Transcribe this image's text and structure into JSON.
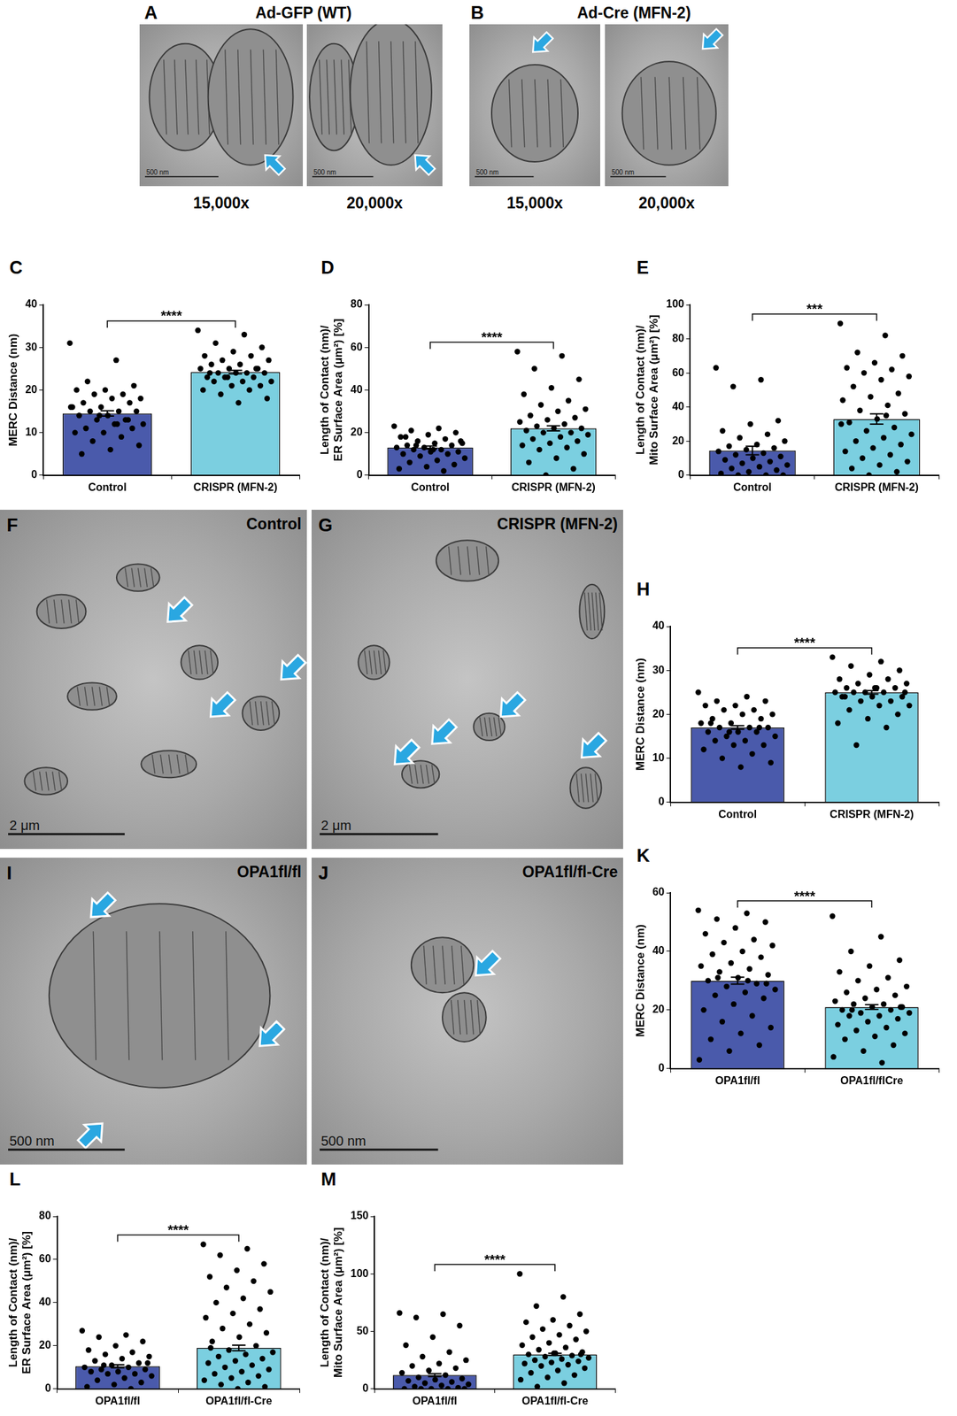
{
  "micrographs": [
    {
      "panel": "A",
      "title": "Ad-GFP (WT)",
      "images": [
        {
          "scale_bar": "500 nm",
          "magnification": "15,000x"
        },
        {
          "scale_bar": "500 nm",
          "magnification": "20,000x"
        }
      ]
    },
    {
      "panel": "B",
      "title": "Ad-Cre (MFN-2)",
      "images": [
        {
          "scale_bar": "500 nm",
          "magnification": "15,000x"
        },
        {
          "scale_bar": "500 nm",
          "magnification": "20,000x"
        }
      ]
    },
    {
      "panel": "F",
      "label": "Control",
      "images": [
        {
          "scale_bar": "2 μm"
        }
      ]
    },
    {
      "panel": "G",
      "label": "CRISPR (MFN-2)",
      "images": [
        {
          "scale_bar": "2 μm"
        }
      ]
    },
    {
      "panel": "I",
      "label": "OPA1fl/fl",
      "images": [
        {
          "scale_bar": "500 nm"
        }
      ]
    },
    {
      "panel": "J",
      "label": "OPA1fl/fl-Cre",
      "images": [
        {
          "scale_bar": "500 nm"
        }
      ]
    }
  ],
  "chart_data": [
    {
      "panel": "C",
      "type": "bar",
      "y_label": "MERC Distance (nm)",
      "categories": [
        "Control",
        "CRISPR (MFN-2)"
      ],
      "values": [
        14.5,
        24.2
      ],
      "error": [
        0.6,
        0.4
      ],
      "points": [
        [
          31,
          27,
          22,
          21,
          20,
          20,
          19,
          19,
          18,
          18,
          17,
          17,
          16,
          16,
          15,
          15,
          15,
          14,
          14,
          13,
          13,
          12,
          12,
          11,
          11,
          10,
          10,
          9,
          8,
          7,
          6,
          5,
          13,
          14,
          16,
          12
        ],
        [
          34,
          33,
          31,
          30,
          29,
          28,
          28,
          27,
          27,
          26,
          26,
          25,
          25,
          25,
          24,
          24,
          24,
          24,
          23,
          23,
          23,
          22,
          22,
          22,
          21,
          21,
          20,
          20,
          19,
          18,
          17,
          24,
          25,
          23
        ]
      ],
      "colors": [
        "#4a5aab",
        "#7bcfe0"
      ],
      "ylim": [
        0,
        40
      ],
      "yticks": [
        0,
        10,
        20,
        30,
        40
      ],
      "significance": "****",
      "grid": false
    },
    {
      "panel": "D",
      "type": "bar",
      "y_label": [
        "Length of Contact (nm)/",
        "ER Surface Area (μm²) [%]"
      ],
      "categories": [
        "Control",
        "CRISPR (MFN-2)"
      ],
      "values": [
        13,
        22
      ],
      "error": [
        0.7,
        1.2
      ],
      "points": [
        [
          23,
          22,
          21,
          20,
          19,
          18,
          17,
          16,
          15,
          15,
          14,
          14,
          13,
          13,
          12,
          12,
          11,
          11,
          10,
          10,
          9,
          8,
          7,
          6,
          5,
          4,
          3,
          2,
          14,
          16,
          12,
          18
        ],
        [
          58,
          56,
          50,
          45,
          41,
          38,
          35,
          33,
          31,
          30,
          28,
          27,
          26,
          25,
          24,
          23,
          22,
          22,
          21,
          20,
          20,
          19,
          18,
          17,
          16,
          15,
          14,
          13,
          12,
          10,
          8,
          6,
          3,
          0
        ]
      ],
      "colors": [
        "#4a5aab",
        "#7bcfe0"
      ],
      "ylim": [
        0,
        80
      ],
      "yticks": [
        0,
        20,
        40,
        60,
        80
      ],
      "significance": "****",
      "grid": false
    },
    {
      "panel": "E",
      "type": "bar",
      "y_label": [
        "Length of Contact (nm)/",
        "Mito Surface Area (μm²) [%]"
      ],
      "categories": [
        "Control",
        "CRISPR (MFN-2)"
      ],
      "values": [
        14.5,
        33
      ],
      "error": [
        2.5,
        3
      ],
      "points": [
        [
          63,
          56,
          52,
          32,
          30,
          26,
          24,
          22,
          20,
          18,
          17,
          16,
          15,
          14,
          13,
          12,
          11,
          10,
          9,
          8,
          7,
          6,
          5,
          4,
          3,
          2,
          1,
          0,
          0,
          0
        ],
        [
          89,
          82,
          72,
          70,
          66,
          63,
          62,
          60,
          58,
          56,
          52,
          48,
          46,
          44,
          41,
          38,
          36,
          33,
          31,
          28,
          26,
          24,
          22,
          20,
          18,
          16,
          14,
          12,
          10,
          8,
          6,
          4,
          2,
          0,
          30,
          35
        ]
      ],
      "colors": [
        "#4a5aab",
        "#7bcfe0"
      ],
      "ylim": [
        0,
        100
      ],
      "yticks": [
        0,
        20,
        40,
        60,
        80,
        100
      ],
      "significance": "***",
      "grid": false
    },
    {
      "panel": "H",
      "type": "bar",
      "y_label": "MERC Distance (nm)",
      "categories": [
        "Control",
        "CRISPR (MFN-2)"
      ],
      "values": [
        17,
        25
      ],
      "error": [
        0.4,
        0.4
      ],
      "points": [
        [
          25,
          24,
          23,
          23,
          22,
          22,
          21,
          21,
          20,
          20,
          19,
          19,
          18,
          18,
          17,
          17,
          17,
          16,
          16,
          16,
          15,
          15,
          14,
          14,
          13,
          13,
          12,
          11,
          10,
          9,
          8,
          18,
          17,
          16
        ],
        [
          33,
          32,
          31,
          30,
          29,
          28,
          28,
          27,
          27,
          26,
          26,
          26,
          25,
          25,
          25,
          25,
          24,
          24,
          24,
          23,
          23,
          22,
          22,
          21,
          20,
          19,
          18,
          17,
          13,
          25,
          26,
          24
        ]
      ],
      "colors": [
        "#4a5aab",
        "#7bcfe0"
      ],
      "ylim": [
        0,
        40
      ],
      "yticks": [
        0,
        10,
        20,
        30,
        40
      ],
      "significance": "****",
      "grid": false
    },
    {
      "panel": "K",
      "type": "bar",
      "y_label": "MERC Distance (nm)",
      "categories": [
        "OPA1fl/fl",
        "OPA1fl/flCre"
      ],
      "values": [
        30,
        21
      ],
      "error": [
        1.2,
        0.8
      ],
      "points": [
        [
          54,
          53,
          51,
          50,
          48,
          46,
          44,
          43,
          42,
          40,
          39,
          38,
          36,
          35,
          34,
          33,
          32,
          31,
          30,
          29,
          28,
          27,
          26,
          25,
          24,
          22,
          20,
          18,
          16,
          14,
          12,
          10,
          8,
          6,
          3,
          30,
          31,
          29
        ],
        [
          52,
          45,
          40,
          37,
          35,
          33,
          31,
          30,
          28,
          27,
          26,
          25,
          24,
          23,
          22,
          22,
          21,
          21,
          20,
          20,
          19,
          19,
          18,
          18,
          17,
          16,
          15,
          14,
          13,
          12,
          11,
          10,
          8,
          6,
          4,
          2,
          20,
          21
        ]
      ],
      "colors": [
        "#4a5aab",
        "#7bcfe0"
      ],
      "ylim": [
        0,
        60
      ],
      "yticks": [
        0,
        20,
        40,
        60
      ],
      "significance": "****",
      "grid": false
    },
    {
      "panel": "L",
      "type": "bar",
      "y_label": [
        "Length of Contact (nm)/",
        "ER Surface Area (μm²) [%]"
      ],
      "categories": [
        "OPA1fl/fl",
        "OPA1fl/fl-Cre"
      ],
      "values": [
        10.5,
        19
      ],
      "error": [
        0.7,
        1.3
      ],
      "points": [
        [
          27,
          25,
          24,
          22,
          20,
          18,
          17,
          16,
          15,
          14,
          13,
          12,
          11,
          10,
          10,
          9,
          9,
          8,
          8,
          7,
          7,
          6,
          5,
          4,
          3,
          2,
          1,
          0,
          11,
          12
        ],
        [
          67,
          65,
          62,
          58,
          55,
          52,
          50,
          47,
          45,
          42,
          40,
          37,
          35,
          33,
          30,
          28,
          26,
          24,
          22,
          20,
          18,
          17,
          16,
          15,
          14,
          13,
          12,
          11,
          10,
          9,
          8,
          7,
          6,
          5,
          4,
          3,
          2,
          1,
          0,
          19
        ]
      ],
      "colors": [
        "#4a5aab",
        "#7bcfe0"
      ],
      "ylim": [
        0,
        80
      ],
      "yticks": [
        0,
        20,
        40,
        60,
        80
      ],
      "significance": "****",
      "grid": false
    },
    {
      "panel": "M",
      "type": "bar",
      "y_label": [
        "Length of Contact (nm)/",
        "Mito Surface Area (μm²) [%]"
      ],
      "categories": [
        "OPA1fl/fl",
        "OPA1fl/fl-Cre"
      ],
      "values": [
        12,
        30
      ],
      "error": [
        1.2,
        1
      ],
      "points": [
        [
          66,
          65,
          62,
          55,
          45,
          38,
          32,
          28,
          25,
          22,
          20,
          18,
          16,
          14,
          12,
          10,
          9,
          8,
          7,
          6,
          5,
          4,
          3,
          2,
          1,
          0,
          0,
          0,
          0,
          0
        ],
        [
          100,
          80,
          72,
          65,
          60,
          58,
          55,
          52,
          50,
          47,
          45,
          43,
          40,
          38,
          36,
          34,
          32,
          31,
          30,
          29,
          28,
          27,
          26,
          25,
          24,
          23,
          22,
          21,
          20,
          18,
          16,
          14,
          12,
          10,
          8,
          5,
          2,
          30,
          31
        ]
      ],
      "colors": [
        "#4a5aab",
        "#7bcfe0"
      ],
      "ylim": [
        0,
        150
      ],
      "yticks": [
        0,
        50,
        100,
        150
      ],
      "significance": "****",
      "grid": false
    }
  ]
}
